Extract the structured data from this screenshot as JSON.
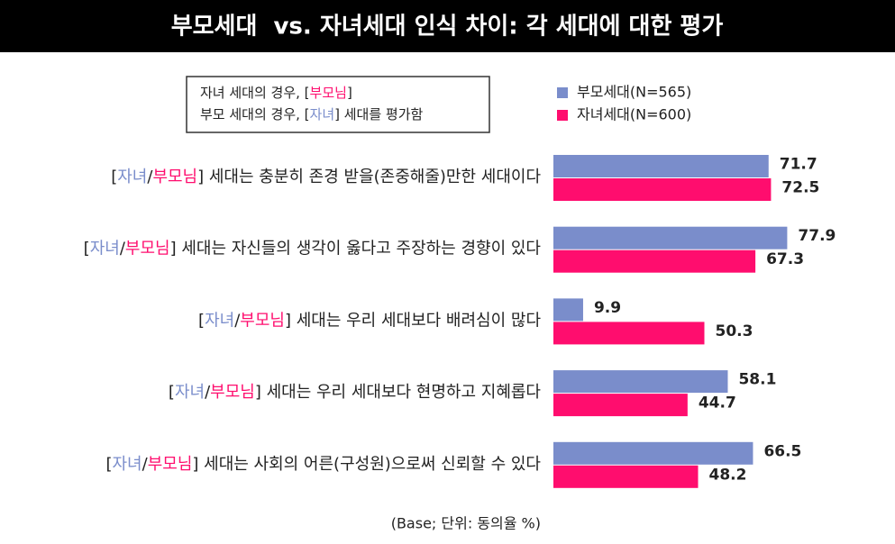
{
  "chart_data": {
    "type": "hbar",
    "title": "부모세대  vs. 자녀세대 인식 차이: 각 세대에 대한 평가",
    "annotation": [
      "자녀 세대의 경우, [부모님]",
      "부모 세대의 경우, [자녀] 세대를 평가함"
    ],
    "note": "(Base; 단위: 동의율 %)",
    "categories": [
      "[자녀/부모님] 세대는 충분히 존경 받을(존중해줄)만한 세대이다",
      "[자녀/부모님] 세대는 자신들의 생각이 옳다고 주장하는 경향이 있다",
      "[자녀/부모님] 세대는 우리 세대보다 배려심이 많다",
      "[자녀/부모님] 세대는 우리 세대보다 현명하고 지혜롭다",
      "[자녀/부모님] 세대는 사회의 어른(구성원)으로써 신뢰할 수 있다"
    ],
    "series": [
      {
        "name": "부모세대(N=565)",
        "color": "#7a8dcb",
        "values": [
          71.7,
          77.9,
          9.9,
          58.1,
          66.5
        ]
      },
      {
        "name": "자녀세대(N=600)",
        "color": "#ff0d6e",
        "values": [
          72.5,
          67.3,
          50.3,
          44.7,
          48.2
        ]
      }
    ],
    "xlim": [
      0,
      100
    ]
  }
}
